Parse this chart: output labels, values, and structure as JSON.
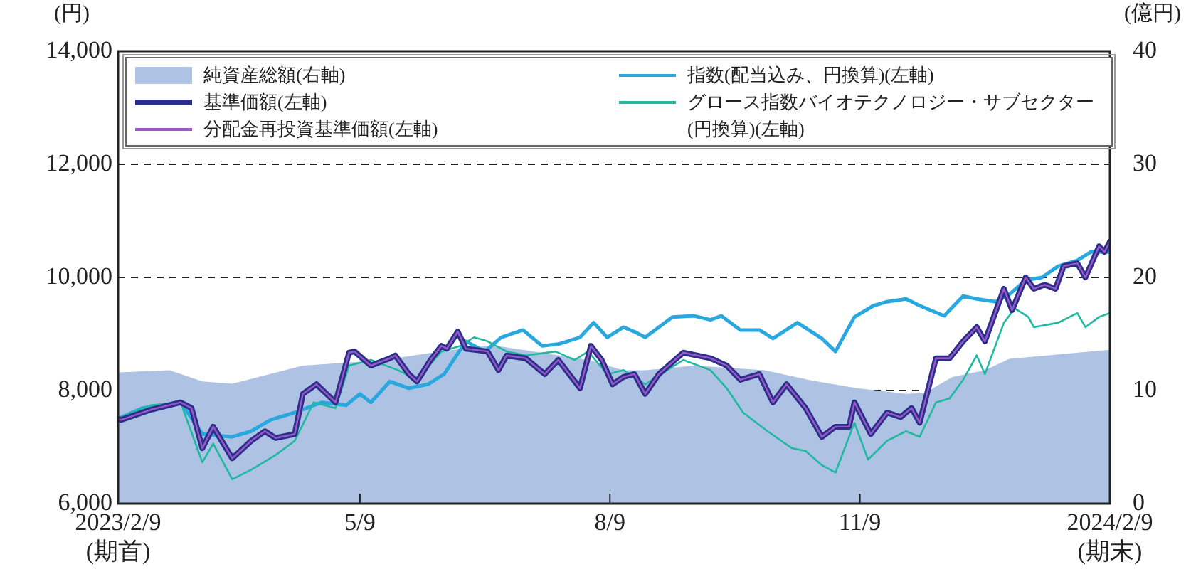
{
  "chart_data": {
    "type": "line",
    "ylabel": "(円)",
    "y2label": "(億円)",
    "xlim": [
      "2023-02-09",
      "2024-02-09"
    ],
    "xticks": [
      {
        "value": "2023-02-09",
        "label": "2023/2/9\n(期首)"
      },
      {
        "value": "2023-05-09",
        "label": "5/9"
      },
      {
        "value": "2023-08-09",
        "label": "8/9"
      },
      {
        "value": "2023-11-09",
        "label": "11/9"
      },
      {
        "value": "2024-02-09",
        "label": "2024/2/9\n(期末)"
      }
    ],
    "ylim": [
      6000,
      14000
    ],
    "yticks": [
      {
        "value": 6000,
        "label": "6,000"
      },
      {
        "value": 8000,
        "label": "8,000"
      },
      {
        "value": 10000,
        "label": "10,000"
      },
      {
        "value": 12000,
        "label": "12,000"
      },
      {
        "value": 14000,
        "label": "14,000"
      }
    ],
    "y2lim": [
      0,
      40
    ],
    "y2ticks": [
      0,
      10,
      20,
      30,
      40
    ],
    "grid": "y",
    "line_style": "solid",
    "marker": "none",
    "legend": "top",
    "series": [
      {
        "name": "純資産総額(右軸)",
        "type": "area",
        "axis": "y2",
        "color": "#aec3e3",
        "x": [
          "2023-02-09",
          "2023-02-28",
          "2023-03-12",
          "2023-03-23",
          "2023-04-18",
          "2023-05-18",
          "2023-06-09",
          "2023-06-27",
          "2023-08-01",
          "2023-08-14",
          "2023-08-22",
          "2023-09-09",
          "2023-10-05",
          "2023-10-22",
          "2023-11-08",
          "2023-11-26",
          "2023-12-03",
          "2023-12-13",
          "2023-12-25",
          "2024-01-03",
          "2024-01-17",
          "2024-02-09"
        ],
        "values": [
          11.6,
          11.8,
          10.8,
          10.6,
          12.2,
          12.7,
          13.5,
          14.0,
          12.7,
          11.8,
          11.8,
          12.2,
          11.8,
          10.9,
          10.2,
          9.7,
          9.8,
          11.2,
          11.8,
          12.8,
          13.1,
          13.6
        ]
      },
      {
        "name": "基準価額(左軸)",
        "color": "#2b2f8c",
        "x": [
          "2023-02-09",
          "2023-02-10",
          "2023-02-21",
          "2023-03-04",
          "2023-03-08",
          "2023-03-12",
          "2023-03-16",
          "2023-03-23",
          "2023-03-30",
          "2023-04-04",
          "2023-04-08",
          "2023-04-15",
          "2023-04-18",
          "2023-04-23",
          "2023-04-30",
          "2023-05-05",
          "2023-05-07",
          "2023-05-13",
          "2023-05-20",
          "2023-05-22",
          "2023-05-27",
          "2023-05-30",
          "2023-06-04",
          "2023-06-08",
          "2023-06-10",
          "2023-06-14",
          "2023-06-17",
          "2023-06-25",
          "2023-06-29",
          "2023-07-02",
          "2023-07-09",
          "2023-07-16",
          "2023-07-21",
          "2023-07-29",
          "2023-08-02",
          "2023-08-06",
          "2023-08-10",
          "2023-08-14",
          "2023-08-18",
          "2023-08-22",
          "2023-08-27",
          "2023-09-05",
          "2023-09-15",
          "2023-09-21",
          "2023-09-26",
          "2023-10-03",
          "2023-10-08",
          "2023-10-13",
          "2023-10-20",
          "2023-10-26",
          "2023-10-31",
          "2023-11-05",
          "2023-11-07",
          "2023-11-13",
          "2023-11-19",
          "2023-11-24",
          "2023-11-28",
          "2023-12-01",
          "2023-12-07",
          "2023-12-12",
          "2023-12-17",
          "2023-12-22",
          "2023-12-25",
          "2024-01-01",
          "2024-01-04",
          "2024-01-09",
          "2024-01-12",
          "2024-01-16",
          "2024-01-20",
          "2024-01-23",
          "2024-01-28",
          "2024-01-31",
          "2024-02-05",
          "2024-02-07",
          "2024-02-09"
        ],
        "values": [
          7500,
          7480,
          7660,
          7790,
          7690,
          6980,
          7360,
          6800,
          7110,
          7280,
          7160,
          7230,
          7940,
          8110,
          7790,
          8670,
          8690,
          8440,
          8570,
          8620,
          8290,
          8160,
          8540,
          8790,
          8740,
          9040,
          8740,
          8690,
          8360,
          8620,
          8570,
          8290,
          8540,
          8040,
          8790,
          8540,
          8110,
          8240,
          8290,
          7940,
          8290,
          8670,
          8570,
          8440,
          8190,
          8290,
          7790,
          8110,
          7690,
          7180,
          7360,
          7360,
          7790,
          7230,
          7610,
          7530,
          7690,
          7430,
          8570,
          8570,
          8870,
          9120,
          8870,
          9800,
          9420,
          10000,
          9800,
          9870,
          9800,
          10200,
          10250,
          10000,
          10550,
          10450,
          10630
        ]
      },
      {
        "name": "分配金再投資基準価額(左軸)",
        "color": "#9b59c6",
        "x": [
          "2023-02-09",
          "2023-02-10",
          "2023-02-21",
          "2023-03-04",
          "2023-03-08",
          "2023-03-12",
          "2023-03-16",
          "2023-03-23",
          "2023-03-30",
          "2023-04-04",
          "2023-04-08",
          "2023-04-15",
          "2023-04-18",
          "2023-04-23",
          "2023-04-30",
          "2023-05-05",
          "2023-05-07",
          "2023-05-13",
          "2023-05-20",
          "2023-05-22",
          "2023-05-27",
          "2023-05-30",
          "2023-06-04",
          "2023-06-08",
          "2023-06-10",
          "2023-06-14",
          "2023-06-17",
          "2023-06-25",
          "2023-06-29",
          "2023-07-02",
          "2023-07-09",
          "2023-07-16",
          "2023-07-21",
          "2023-07-29",
          "2023-08-02",
          "2023-08-06",
          "2023-08-10",
          "2023-08-14",
          "2023-08-18",
          "2023-08-22",
          "2023-08-27",
          "2023-09-05",
          "2023-09-15",
          "2023-09-21",
          "2023-09-26",
          "2023-10-03",
          "2023-10-08",
          "2023-10-13",
          "2023-10-20",
          "2023-10-26",
          "2023-10-31",
          "2023-11-05",
          "2023-11-07",
          "2023-11-13",
          "2023-11-19",
          "2023-11-24",
          "2023-11-28",
          "2023-12-01",
          "2023-12-07",
          "2023-12-12",
          "2023-12-17",
          "2023-12-22",
          "2023-12-25",
          "2024-01-01",
          "2024-01-04",
          "2024-01-09",
          "2024-01-12",
          "2024-01-16",
          "2024-01-20",
          "2024-01-23",
          "2024-01-28",
          "2024-01-31",
          "2024-02-05",
          "2024-02-07",
          "2024-02-09"
        ],
        "values": [
          7500,
          7480,
          7660,
          7790,
          7690,
          6980,
          7360,
          6800,
          7110,
          7280,
          7160,
          7230,
          7940,
          8110,
          7790,
          8670,
          8690,
          8440,
          8570,
          8620,
          8290,
          8160,
          8540,
          8790,
          8740,
          9040,
          8740,
          8690,
          8360,
          8620,
          8570,
          8290,
          8540,
          8040,
          8790,
          8540,
          8110,
          8240,
          8290,
          7940,
          8290,
          8670,
          8570,
          8440,
          8190,
          8290,
          7790,
          8110,
          7690,
          7180,
          7360,
          7360,
          7790,
          7230,
          7610,
          7530,
          7690,
          7430,
          8570,
          8570,
          8870,
          9120,
          8870,
          9800,
          9420,
          10000,
          9800,
          9870,
          9800,
          10200,
          10250,
          10000,
          10550,
          10450,
          10630
        ]
      },
      {
        "name": "指数(配当込み、円換算)(左軸)",
        "color": "#29a8e0",
        "x": [
          "2023-02-09",
          "2023-02-18",
          "2023-03-04",
          "2023-03-12",
          "2023-03-23",
          "2023-03-30",
          "2023-04-06",
          "2023-04-15",
          "2023-04-25",
          "2023-05-04",
          "2023-05-09",
          "2023-05-13",
          "2023-05-20",
          "2023-05-27",
          "2023-06-03",
          "2023-06-09",
          "2023-06-17",
          "2023-06-24",
          "2023-06-30",
          "2023-07-08",
          "2023-07-15",
          "2023-07-21",
          "2023-07-29",
          "2023-08-03",
          "2023-08-08",
          "2023-08-14",
          "2023-08-18",
          "2023-08-22",
          "2023-09-01",
          "2023-09-09",
          "2023-09-15",
          "2023-09-19",
          "2023-09-26",
          "2023-10-03",
          "2023-10-08",
          "2023-10-17",
          "2023-10-26",
          "2023-10-31",
          "2023-11-07",
          "2023-11-14",
          "2023-11-19",
          "2023-11-26",
          "2023-12-01",
          "2023-12-10",
          "2023-12-17",
          "2023-12-22",
          "2023-12-29",
          "2024-01-03",
          "2024-01-09",
          "2024-01-15",
          "2024-01-21",
          "2024-01-28",
          "2024-02-02",
          "2024-02-09"
        ],
        "values": [
          7500,
          7690,
          7790,
          7230,
          7180,
          7280,
          7480,
          7610,
          7790,
          7740,
          7940,
          7790,
          8160,
          8040,
          8110,
          8290,
          8870,
          8690,
          8940,
          9070,
          8790,
          8820,
          8940,
          9200,
          8940,
          9120,
          9040,
          8940,
          9300,
          9320,
          9250,
          9320,
          9070,
          9070,
          8920,
          9200,
          8920,
          8690,
          9300,
          9500,
          9570,
          9620,
          9500,
          9320,
          9670,
          9620,
          9570,
          9700,
          9950,
          10000,
          10200,
          10300,
          10450,
          10450
        ]
      },
      {
        "name": "グロース指数バイオテクノロジー・サブセクター(円換算)(左軸)",
        "color": "#20b9a0",
        "x": [
          "2023-02-09",
          "2023-02-21",
          "2023-03-04",
          "2023-03-12",
          "2023-03-16",
          "2023-03-23",
          "2023-03-30",
          "2023-04-08",
          "2023-04-15",
          "2023-04-22",
          "2023-04-30",
          "2023-05-05",
          "2023-05-13",
          "2023-05-23",
          "2023-05-30",
          "2023-06-08",
          "2023-06-15",
          "2023-06-20",
          "2023-06-25",
          "2023-07-02",
          "2023-07-09",
          "2023-07-20",
          "2023-07-27",
          "2023-08-01",
          "2023-08-08",
          "2023-08-14",
          "2023-08-22",
          "2023-09-05",
          "2023-09-15",
          "2023-09-21",
          "2023-09-27",
          "2023-10-06",
          "2023-10-15",
          "2023-10-20",
          "2023-10-26",
          "2023-10-31",
          "2023-11-07",
          "2023-11-12",
          "2023-11-19",
          "2023-11-26",
          "2023-12-01",
          "2023-12-07",
          "2023-12-12",
          "2023-12-17",
          "2023-12-22",
          "2023-12-25",
          "2024-01-01",
          "2024-01-05",
          "2024-01-10",
          "2024-01-12",
          "2024-01-21",
          "2024-01-28",
          "2024-01-31",
          "2024-02-05",
          "2024-02-09"
        ],
        "values": [
          7500,
          7740,
          7790,
          6730,
          7060,
          6430,
          6600,
          6860,
          7110,
          7790,
          7690,
          8440,
          8540,
          8360,
          8190,
          8690,
          8790,
          8940,
          8870,
          8690,
          8620,
          8690,
          8540,
          8690,
          8290,
          8360,
          8110,
          8540,
          8360,
          8040,
          7610,
          7280,
          6980,
          6930,
          6680,
          6550,
          7430,
          6780,
          7110,
          7280,
          7180,
          7790,
          7860,
          8190,
          8620,
          8290,
          9200,
          9450,
          9300,
          9120,
          9200,
          9370,
          9120,
          9300,
          9370
        ]
      }
    ]
  }
}
